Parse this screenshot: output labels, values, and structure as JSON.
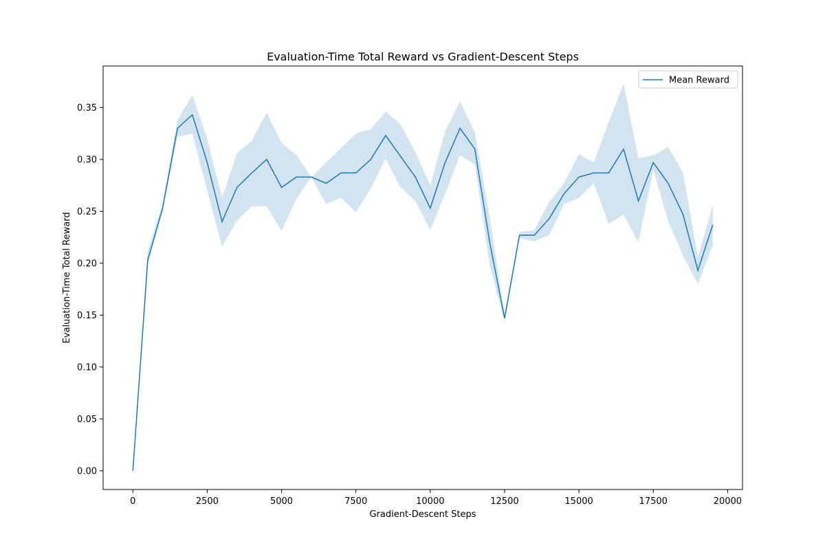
{
  "chart_data": {
    "type": "line",
    "title": "Evaluation-Time Total Reward vs Gradient-Descent Steps",
    "xlabel": "Gradient-Descent Steps",
    "ylabel": "Evaluation-Time Total Reward",
    "xlim": [
      -1000,
      20500
    ],
    "ylim": [
      -0.018,
      0.39
    ],
    "xticks": [
      0,
      2500,
      5000,
      7500,
      10000,
      12500,
      15000,
      17500,
      20000
    ],
    "xtick_labels": [
      "0",
      "2500",
      "5000",
      "7500",
      "10000",
      "12500",
      "15000",
      "17500",
      "20000"
    ],
    "yticks": [
      0.0,
      0.05,
      0.1,
      0.15,
      0.2,
      0.25,
      0.3,
      0.35
    ],
    "ytick_labels": [
      "0.00",
      "0.05",
      "0.10",
      "0.15",
      "0.20",
      "0.25",
      "0.30",
      "0.35"
    ],
    "grid": false,
    "legend_position": "top-right",
    "colors": {
      "line": "#1f77b4",
      "band": "#1f77b4"
    },
    "x": [
      0,
      500,
      1000,
      1500,
      2000,
      2500,
      3000,
      3500,
      4000,
      4500,
      5000,
      5500,
      6000,
      6500,
      7000,
      7500,
      8000,
      8500,
      9000,
      9500,
      10000,
      10500,
      11000,
      11500,
      12000,
      12500,
      13000,
      13500,
      14000,
      14500,
      15000,
      15500,
      16000,
      16500,
      17000,
      17500,
      18000,
      18500,
      19000,
      19500
    ],
    "series": [
      {
        "name": "Mean Reward",
        "values": [
          0.0,
          0.203,
          0.253,
          0.33,
          0.343,
          0.297,
          0.24,
          0.273,
          0.287,
          0.3,
          0.273,
          0.283,
          0.283,
          0.277,
          0.287,
          0.287,
          0.3,
          0.323,
          0.303,
          0.283,
          0.253,
          0.297,
          0.33,
          0.31,
          0.22,
          0.147,
          0.227,
          0.227,
          0.243,
          0.267,
          0.283,
          0.287,
          0.287,
          0.31,
          0.26,
          0.297,
          0.277,
          0.247,
          0.193,
          0.237
        ],
        "lower": [
          0.0,
          0.198,
          0.25,
          0.322,
          0.325,
          0.27,
          0.216,
          0.241,
          0.255,
          0.255,
          0.231,
          0.262,
          0.283,
          0.257,
          0.263,
          0.249,
          0.272,
          0.301,
          0.273,
          0.26,
          0.232,
          0.267,
          0.304,
          0.295,
          0.198,
          0.143,
          0.224,
          0.221,
          0.227,
          0.257,
          0.263,
          0.277,
          0.238,
          0.247,
          0.22,
          0.29,
          0.241,
          0.207,
          0.18,
          0.217
        ],
        "upper": [
          0.0,
          0.212,
          0.258,
          0.338,
          0.362,
          0.32,
          0.263,
          0.306,
          0.318,
          0.345,
          0.316,
          0.304,
          0.283,
          0.297,
          0.311,
          0.325,
          0.329,
          0.346,
          0.334,
          0.307,
          0.275,
          0.327,
          0.356,
          0.326,
          0.244,
          0.151,
          0.23,
          0.232,
          0.259,
          0.277,
          0.305,
          0.297,
          0.336,
          0.373,
          0.301,
          0.304,
          0.312,
          0.287,
          0.206,
          0.256
        ]
      }
    ]
  }
}
